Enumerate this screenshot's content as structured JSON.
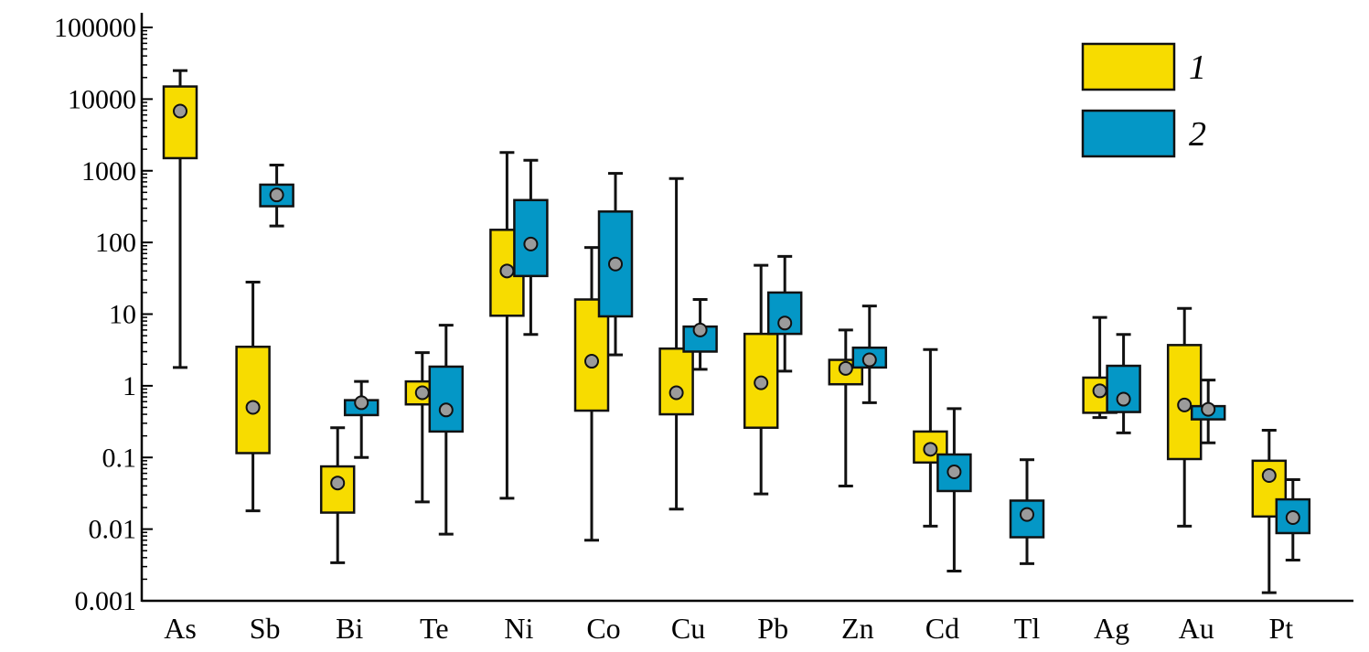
{
  "chart_data": {
    "type": "box",
    "y_scale": "log",
    "ylim": [
      0.001,
      100000
    ],
    "y_ticks": [
      {
        "value": 100000,
        "label": "100000"
      },
      {
        "value": 10000,
        "label": "10000"
      },
      {
        "value": 1000,
        "label": "1000"
      },
      {
        "value": 100,
        "label": "100"
      },
      {
        "value": 10,
        "label": "10"
      },
      {
        "value": 1,
        "label": "1"
      },
      {
        "value": 0.1,
        "label": "0.1"
      },
      {
        "value": 0.01,
        "label": "0.01"
      },
      {
        "value": 0.001,
        "label": "0.001"
      }
    ],
    "categories": [
      "As",
      "Sb",
      "Bi",
      "Te",
      "Ni",
      "Co",
      "Cu",
      "Pb",
      "Zn",
      "Cd",
      "Tl",
      "Ag",
      "Au",
      "Pt"
    ],
    "legend_position": "top-right",
    "series": [
      {
        "name": "1",
        "color": "#f7dc00",
        "boxes": [
          {
            "category": "As",
            "min": 1.8,
            "q1": 1500,
            "median": 6800,
            "q3": 15000,
            "max": 25000
          },
          {
            "category": "Sb",
            "min": 0.018,
            "q1": 0.115,
            "median": 0.5,
            "q3": 3.5,
            "max": 28
          },
          {
            "category": "Bi",
            "min": 0.0034,
            "q1": 0.017,
            "median": 0.044,
            "q3": 0.075,
            "max": 0.26
          },
          {
            "category": "Te",
            "min": 0.024,
            "q1": 0.55,
            "median": 0.8,
            "q3": 1.15,
            "max": 2.9
          },
          {
            "category": "Ni",
            "min": 0.027,
            "q1": 9.5,
            "median": 40,
            "q3": 150,
            "max": 1800
          },
          {
            "category": "Co",
            "min": 0.007,
            "q1": 0.45,
            "median": 2.2,
            "q3": 16,
            "max": 85
          },
          {
            "category": "Cu",
            "min": 0.019,
            "q1": 0.4,
            "median": 0.8,
            "q3": 3.3,
            "max": 780
          },
          {
            "category": "Pb",
            "min": 0.031,
            "q1": 0.26,
            "median": 1.1,
            "q3": 5.3,
            "max": 48
          },
          {
            "category": "Zn",
            "min": 0.04,
            "q1": 1.05,
            "median": 1.75,
            "q3": 2.3,
            "max": 6
          },
          {
            "category": "Cd",
            "min": 0.011,
            "q1": 0.085,
            "median": 0.13,
            "q3": 0.23,
            "max": 3.2
          },
          {
            "category": "Ag",
            "min": 0.36,
            "q1": 0.42,
            "median": 0.85,
            "q3": 1.3,
            "max": 9
          },
          {
            "category": "Au",
            "min": 0.011,
            "q1": 0.095,
            "median": 0.54,
            "q3": 3.7,
            "max": 12
          },
          {
            "category": "Pt",
            "min": 0.0013,
            "q1": 0.015,
            "median": 0.056,
            "q3": 0.09,
            "max": 0.24
          }
        ]
      },
      {
        "name": "2",
        "color": "#0497c6",
        "boxes": [
          {
            "category": "Sb",
            "min": 170,
            "q1": 320,
            "median": 460,
            "q3": 640,
            "max": 1200
          },
          {
            "category": "Bi",
            "min": 0.1,
            "q1": 0.39,
            "median": 0.58,
            "q3": 0.63,
            "max": 1.15
          },
          {
            "category": "Te",
            "min": 0.0085,
            "q1": 0.23,
            "median": 0.46,
            "q3": 1.85,
            "max": 7
          },
          {
            "category": "Ni",
            "min": 5.2,
            "q1": 34,
            "median": 95,
            "q3": 390,
            "max": 1400
          },
          {
            "category": "Co",
            "min": 2.7,
            "q1": 9.3,
            "median": 50,
            "q3": 270,
            "max": 920
          },
          {
            "category": "Cu",
            "min": 1.7,
            "q1": 3.0,
            "median": 6.0,
            "q3": 6.7,
            "max": 16
          },
          {
            "category": "Pb",
            "min": 1.6,
            "q1": 5.3,
            "median": 7.5,
            "q3": 20,
            "max": 64
          },
          {
            "category": "Zn",
            "min": 0.58,
            "q1": 1.8,
            "median": 2.3,
            "q3": 3.4,
            "max": 13
          },
          {
            "category": "Cd",
            "min": 0.0026,
            "q1": 0.034,
            "median": 0.063,
            "q3": 0.11,
            "max": 0.48
          },
          {
            "category": "Tl",
            "min": 0.0033,
            "q1": 0.0077,
            "median": 0.016,
            "q3": 0.025,
            "max": 0.093
          },
          {
            "category": "Ag",
            "min": 0.22,
            "q1": 0.43,
            "median": 0.65,
            "q3": 1.9,
            "max": 5.2
          },
          {
            "category": "Au",
            "min": 0.16,
            "q1": 0.34,
            "median": 0.47,
            "q3": 0.52,
            "max": 1.2
          },
          {
            "category": "Pt",
            "min": 0.0037,
            "q1": 0.0088,
            "median": 0.0145,
            "q3": 0.026,
            "max": 0.049
          }
        ]
      }
    ]
  }
}
